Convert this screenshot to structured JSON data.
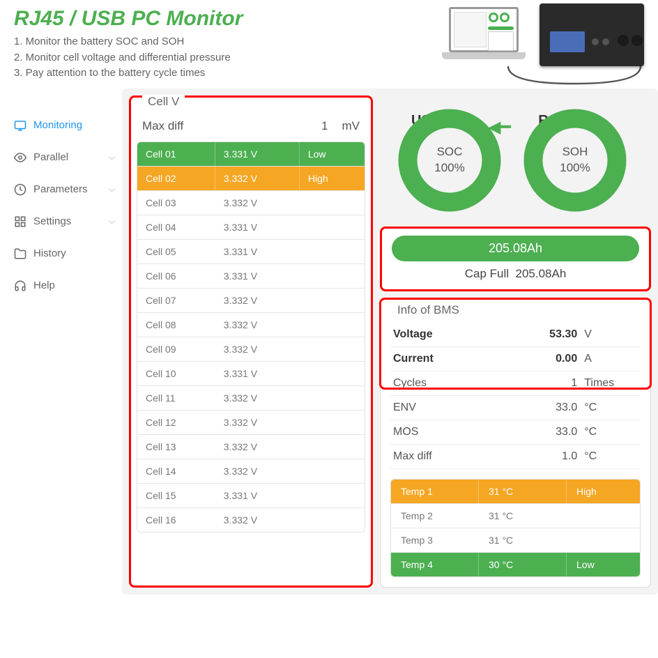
{
  "header": {
    "title": "RJ45 / USB PC Monitor",
    "title_color": "#4caf50",
    "desc": [
      "1. Monitor the battery SOC and SOH",
      "2. Monitor cell voltage and differential pressure",
      "3. Pay attention to the battery cycle times"
    ],
    "conn_left": "USB",
    "conn_right": "RJ45"
  },
  "sidebar": {
    "items": [
      {
        "label": "Monitoring",
        "active": true,
        "icon": "monitor"
      },
      {
        "label": "Parallel",
        "chev": true,
        "icon": "eye"
      },
      {
        "label": "Parameters",
        "chev": true,
        "icon": "clock"
      },
      {
        "label": "Settings",
        "chev": true,
        "icon": "settings"
      },
      {
        "label": "History",
        "icon": "folder"
      },
      {
        "label": "Help",
        "icon": "headset"
      }
    ]
  },
  "cell_panel": {
    "title": "Cell V",
    "maxdiff_label": "Max diff",
    "maxdiff_value": "1",
    "maxdiff_unit": "mV",
    "rows": [
      {
        "name": "Cell 01",
        "v": "3.331 V",
        "tag": "Low",
        "cls": "low"
      },
      {
        "name": "Cell 02",
        "v": "3.332 V",
        "tag": "High",
        "cls": "high"
      },
      {
        "name": "Cell 03",
        "v": "3.332 V",
        "tag": ""
      },
      {
        "name": "Cell 04",
        "v": "3.331 V",
        "tag": ""
      },
      {
        "name": "Cell 05",
        "v": "3.331 V",
        "tag": ""
      },
      {
        "name": "Cell 06",
        "v": "3.331 V",
        "tag": ""
      },
      {
        "name": "Cell 07",
        "v": "3.332 V",
        "tag": ""
      },
      {
        "name": "Cell 08",
        "v": "3.332 V",
        "tag": ""
      },
      {
        "name": "Cell 09",
        "v": "3.332 V",
        "tag": ""
      },
      {
        "name": "Cell 10",
        "v": "3.331 V",
        "tag": ""
      },
      {
        "name": "Cell 11",
        "v": "3.332 V",
        "tag": ""
      },
      {
        "name": "Cell 12",
        "v": "3.332 V",
        "tag": ""
      },
      {
        "name": "Cell 13",
        "v": "3.332 V",
        "tag": ""
      },
      {
        "name": "Cell 14",
        "v": "3.332 V",
        "tag": ""
      },
      {
        "name": "Cell 15",
        "v": "3.331 V",
        "tag": ""
      },
      {
        "name": "Cell 16",
        "v": "3.332 V",
        "tag": ""
      }
    ],
    "colors": {
      "low": "#4caf50",
      "high": "#f5a623"
    }
  },
  "gauges": {
    "ring_color": "#4caf50",
    "ring_bg": "#e8e8e8",
    "soc": {
      "label": "SOC",
      "value": "100%",
      "pct": 100
    },
    "soh": {
      "label": "SOH",
      "value": "100%",
      "pct": 100
    }
  },
  "capacity": {
    "bar_text": "205.08Ah",
    "full_label": "Cap Full",
    "full_value": "205.08Ah",
    "bar_color": "#4caf50"
  },
  "bms": {
    "title": "Info of BMS",
    "rows": [
      {
        "k": "Voltage",
        "v": "53.30",
        "u": "V",
        "bold": true
      },
      {
        "k": "Current",
        "v": "0.00",
        "u": "A",
        "bold": true
      },
      {
        "k": "Cycles",
        "v": "1",
        "u": "Times"
      },
      {
        "k": "ENV",
        "v": "33.0",
        "u": "°C"
      },
      {
        "k": "MOS",
        "v": "33.0",
        "u": "°C"
      },
      {
        "k": "Max diff",
        "v": "1.0",
        "u": "°C"
      }
    ],
    "temps": [
      {
        "name": "Temp 1",
        "v": "31 °C",
        "tag": "High",
        "cls": "high"
      },
      {
        "name": "Temp 2",
        "v": "31 °C",
        "tag": ""
      },
      {
        "name": "Temp 3",
        "v": "31 °C",
        "tag": ""
      },
      {
        "name": "Temp 4",
        "v": "30 °C",
        "tag": "Low",
        "cls": "low"
      }
    ]
  },
  "highlight_border": "#ff0000"
}
